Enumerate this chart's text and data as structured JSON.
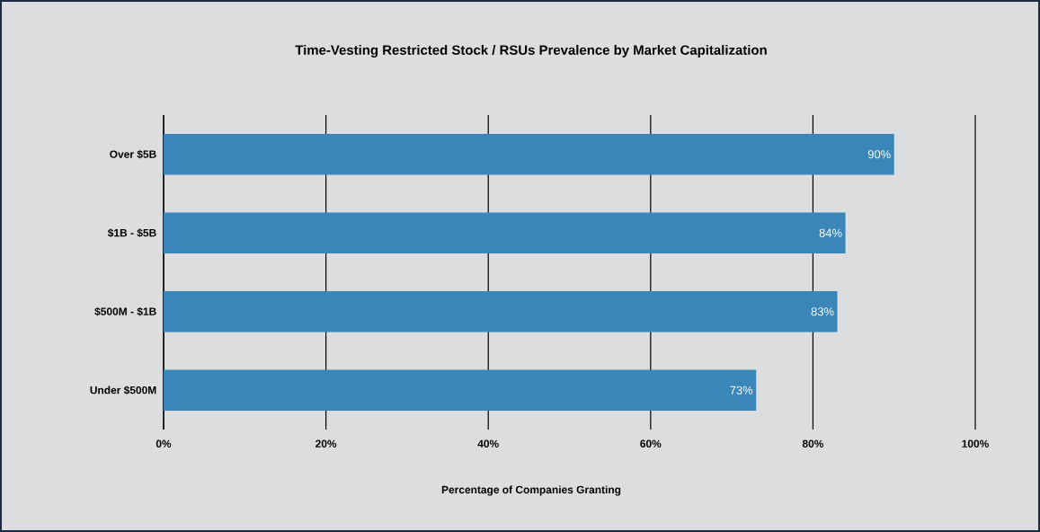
{
  "chart_data": {
    "type": "bar",
    "orientation": "horizontal",
    "title": "Time-Vesting Restricted Stock /  RSUs Prevalence by Market Capitalization",
    "xlabel": "Percentage of Companies Granting",
    "categories": [
      "Over $5B",
      "$1B - $5B",
      "$500M - $1B",
      "Under $500M"
    ],
    "values": [
      90,
      84,
      83,
      73
    ],
    "value_labels": [
      "90%",
      "84%",
      "83%",
      "73%"
    ],
    "color": "#3a86b8",
    "xlim": [
      0,
      100
    ],
    "xticks": [
      {
        "value": 0,
        "label": "0%"
      },
      {
        "value": 20,
        "label": "20%"
      },
      {
        "value": 40,
        "label": "40%"
      },
      {
        "value": 60,
        "label": "60%"
      },
      {
        "value": 80,
        "label": "80%"
      },
      {
        "value": 100,
        "label": "100%"
      }
    ],
    "grid": "x"
  }
}
